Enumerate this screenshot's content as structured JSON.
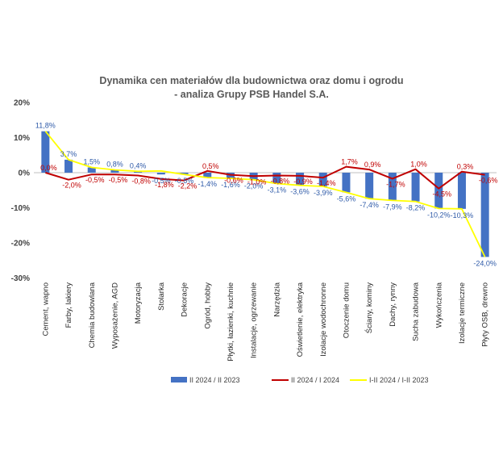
{
  "chart_data": {
    "type": "bar",
    "title": "Dynamika cen materiałów dla budownictwa oraz domu i ogrodu",
    "subtitle": "- analiza Grupy PSB Handel S.A.",
    "ylim": [
      -30,
      20
    ],
    "yticks": [
      "20%",
      "10%",
      "0%",
      "-10%",
      "-20%",
      "-30%"
    ],
    "categories": [
      "Cement, wapno",
      "Farby, lakiery",
      "Chemia budowlana",
      "Wyposażenie, AGD",
      "Motoryzacja",
      "Stolarka",
      "Dekoracje",
      "Ogród, hobby",
      "Płytki, łazienki, kuchnie",
      "Instalacje, ogrzewanie",
      "Narzędzia",
      "Oświetlenie, elektryka",
      "Izolacje wodochronne",
      "Otoczenie domu",
      "Ściany, kominy",
      "Dachy, rynny",
      "Sucha zabudowa",
      "Wykończenia",
      "Izolacje termiczne",
      "Płyty OSB, drewno"
    ],
    "series": [
      {
        "name": "II 2024 / II 2023",
        "type": "bar",
        "color": "#4472c4",
        "values": [
          11.8,
          3.7,
          1.5,
          0.8,
          0.4,
          -0.5,
          -0.5,
          -1.4,
          -1.6,
          -2.0,
          -3.1,
          -3.6,
          -3.9,
          -5.6,
          -7.4,
          -7.9,
          -8.2,
          -10.2,
          -10.3,
          -24.0
        ],
        "labels": [
          "11,8%",
          "3,7%",
          "1,5%",
          "0,8%",
          "0,4%",
          "-0,5%",
          "-0,5%",
          "-1,4%",
          "-1,6%",
          "-2,0%",
          "-3,1%",
          "-3,6%",
          "-3,9%",
          "-5,6%",
          "-7,4%",
          "-7,9%",
          "-8,2%",
          "-10,2%",
          "-10,3%",
          "-24,0%"
        ]
      },
      {
        "name": "II 2024 / I 2024",
        "type": "line",
        "color": "#c00000",
        "values": [
          0.0,
          -2.0,
          -0.5,
          -0.5,
          -0.8,
          -1.8,
          -2.2,
          0.5,
          -0.6,
          -1.0,
          -0.8,
          -0.9,
          -1.4,
          1.7,
          0.9,
          -1.7,
          1.0,
          -4.5,
          0.3,
          -0.6
        ],
        "labels": [
          "0,0%",
          "-2,0%",
          "-0,5%",
          "-0,5%",
          "-0,8%",
          "-1,8%",
          "-2,2%",
          "0,5%",
          "-0,6%",
          "-1,0%",
          "-0,8%",
          "-0,9%",
          "-1,4%",
          "1,7%",
          "0,9%",
          "-1,7%",
          "1,0%",
          "-4,5%",
          "0,3%",
          "-0,6%"
        ]
      },
      {
        "name": "I-II 2024 / I-II 2023",
        "type": "line",
        "color": "#ffff00",
        "values": [
          11.8,
          3.7,
          1.5,
          0.8,
          0.4,
          0.5,
          -0.5,
          -1.4,
          -1.6,
          -2.0,
          -3.1,
          -3.6,
          -3.9,
          -5.6,
          -7.4,
          -7.9,
          -8.2,
          -10.2,
          -10.3,
          -24.0
        ],
        "labels": []
      }
    ],
    "legend": {
      "position": "bottom",
      "items": [
        "II 2024 / II 2023",
        "II 2024 / I 2024",
        "I-II 2024 / I-II 2023"
      ]
    },
    "grid": false
  }
}
